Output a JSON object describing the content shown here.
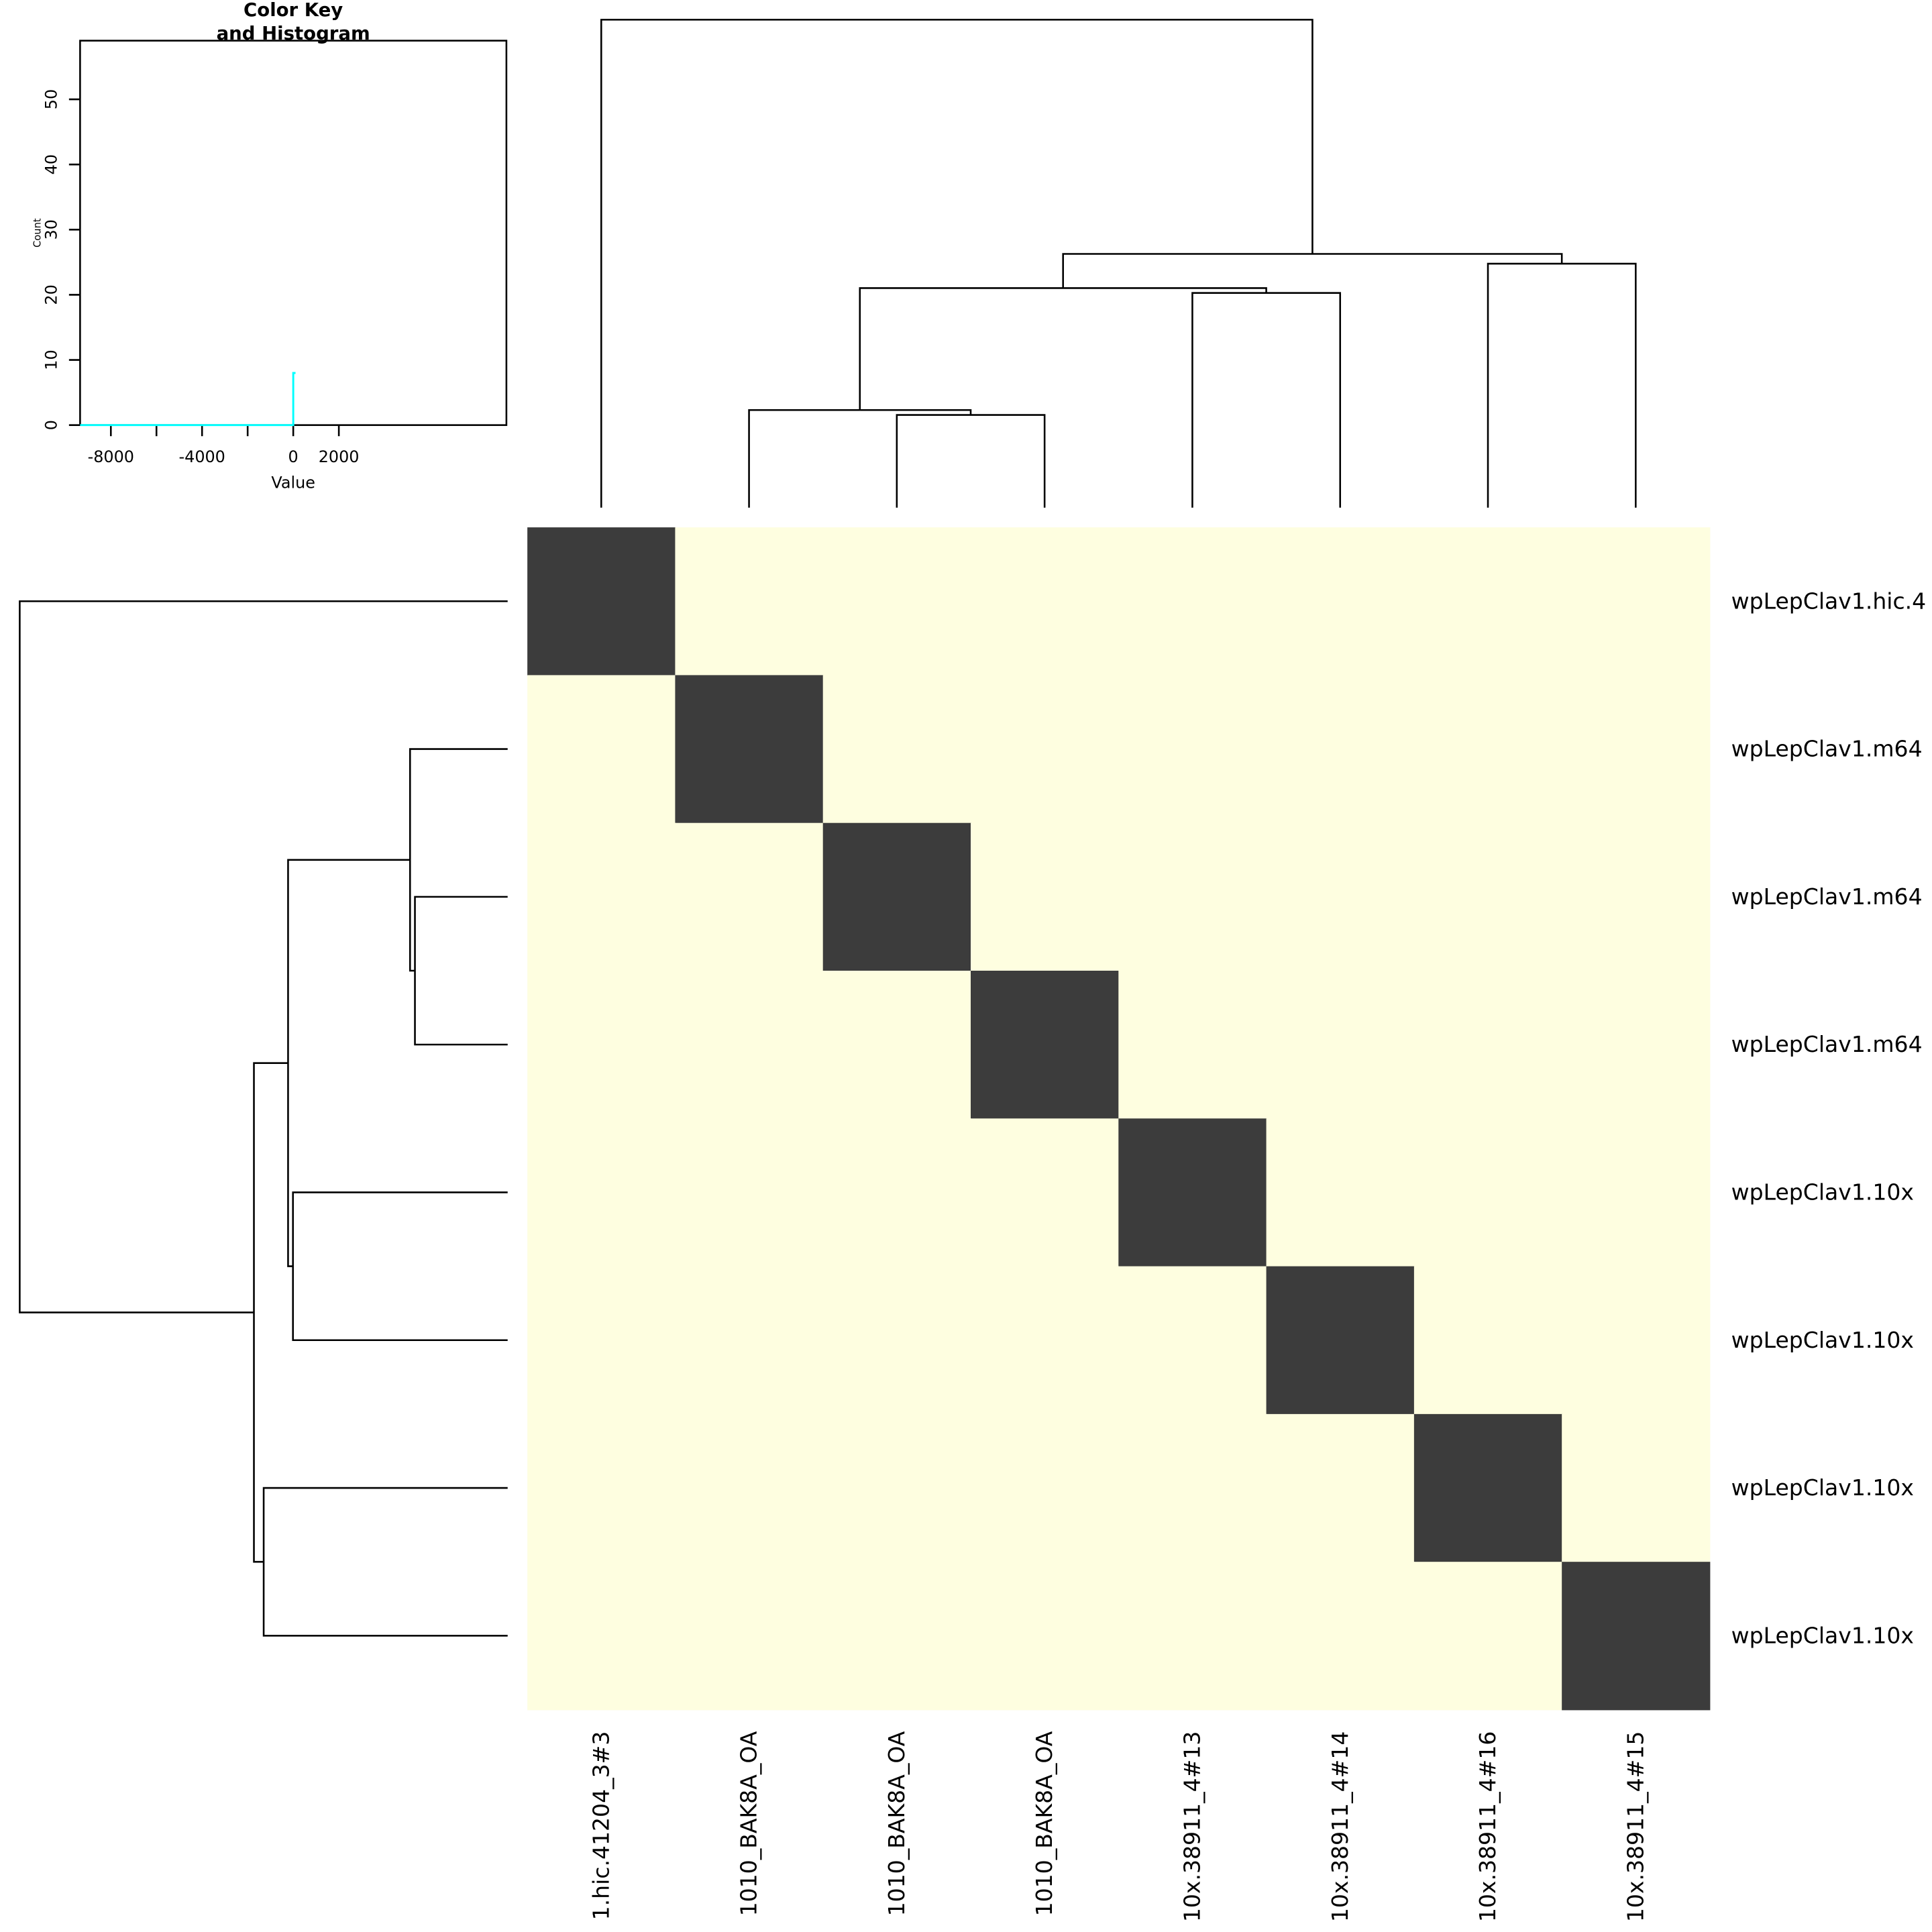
{
  "chart_data": {
    "type": "heatmap",
    "row_labels": [
      "wpLepClav1.hic.4",
      "wpLepClav1.m64",
      "wpLepClav1.m64",
      "wpLepClav1.m64",
      "wpLepClav1.10x",
      "wpLepClav1.10x",
      "wpLepClav1.10x",
      "wpLepClav1.10x"
    ],
    "col_labels": [
      "1.hic.41204_3#3",
      "1010_BAK8A_OA",
      "1010_BAK8A_OA",
      "1010_BAK8A_OA",
      "10x.38911_4#13",
      "10x.38911_4#14",
      "10x.38911_4#16",
      "10x.38911_4#15"
    ],
    "matrix_pattern": "diagonal high, off-diagonal low",
    "colors": {
      "high": "#3c3c3c",
      "low": "#fefee0",
      "histogram": "#00ffff"
    },
    "dendrogram_relative_heights": {
      "note_units": "fraction of tallest merge",
      "merges": [
        {
          "left": [
            2
          ],
          "right": [
            3
          ],
          "height": 0.19
        },
        {
          "left": [
            1
          ],
          "right": [
            2,
            3
          ],
          "height": 0.2
        },
        {
          "left": [
            4
          ],
          "right": [
            5
          ],
          "height": 0.44
        },
        {
          "left": [
            1,
            2,
            3
          ],
          "right": [
            4,
            5
          ],
          "height": 0.45
        },
        {
          "left": [
            6
          ],
          "right": [
            7
          ],
          "height": 0.5
        },
        {
          "left": [
            1,
            2,
            3,
            4,
            5
          ],
          "right": [
            6,
            7
          ],
          "height": 0.52
        },
        {
          "left": [
            0
          ],
          "right": [
            1,
            2,
            3,
            4,
            5,
            6,
            7
          ],
          "height": 1.0
        }
      ]
    },
    "color_key": {
      "title_line1": "Color Key",
      "title_line2": "and Histogram",
      "xlabel": "Value",
      "ylabel": "Count",
      "x_ticks": [
        -8000,
        -6000,
        -4000,
        -2000,
        0,
        2000
      ],
      "x_tick_labels": [
        "-8000",
        "",
        "-4000",
        "",
        "0",
        "2000"
      ],
      "y_ticks": [
        0,
        10,
        20,
        30,
        40,
        50
      ],
      "y_tick_labels": [
        "0",
        "10",
        "20",
        "30",
        "40",
        "50"
      ],
      "xlim": [
        -9350,
        9350
      ],
      "ylim": [
        0,
        59
      ],
      "histogram_line": [
        [
          -9350,
          0
        ],
        [
          0,
          0
        ],
        [
          0,
          8
        ],
        [
          100,
          8
        ]
      ]
    }
  }
}
